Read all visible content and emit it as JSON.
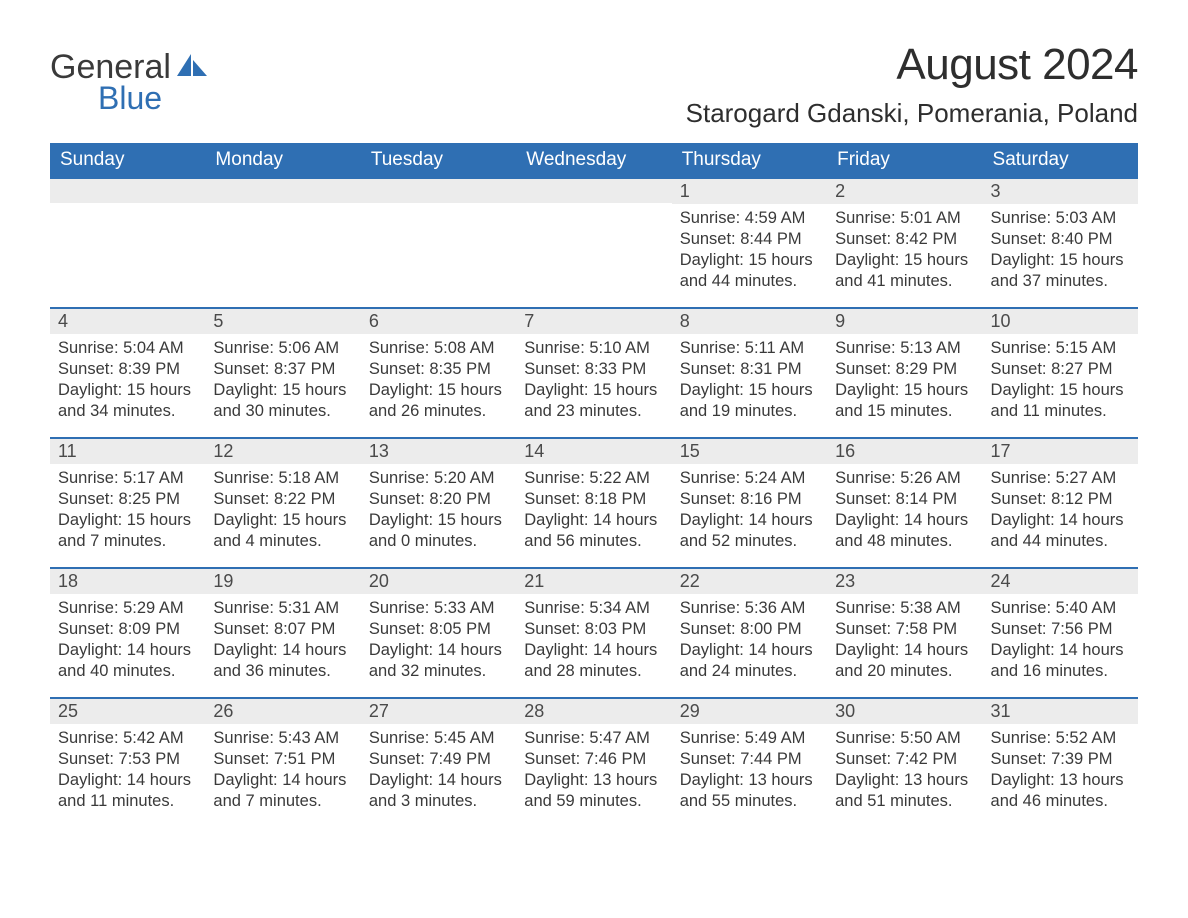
{
  "brand": {
    "word1": "General",
    "word2": "Blue"
  },
  "title": "August 2024",
  "location": "Starogard Gdanski, Pomerania, Poland",
  "colors": {
    "accent": "#2f6fb3",
    "header_bg": "#2f6fb3",
    "header_text": "#ffffff",
    "day_bar_bg": "#ececec",
    "text": "#3a3a3a",
    "page_bg": "#ffffff"
  },
  "typography": {
    "month_title_fontsize": 44,
    "location_fontsize": 26,
    "weekday_fontsize": 19,
    "daynum_fontsize": 18,
    "body_fontsize": 16.5
  },
  "layout": {
    "columns": 7,
    "rows": 5,
    "start_weekday_index": 4
  },
  "weekdays": [
    "Sunday",
    "Monday",
    "Tuesday",
    "Wednesday",
    "Thursday",
    "Friday",
    "Saturday"
  ],
  "labels": {
    "sunrise": "Sunrise:",
    "sunset": "Sunset:",
    "daylight": "Daylight:"
  },
  "days": [
    {
      "n": 1,
      "sunrise": "4:59 AM",
      "sunset": "8:44 PM",
      "daylight": "15 hours and 44 minutes."
    },
    {
      "n": 2,
      "sunrise": "5:01 AM",
      "sunset": "8:42 PM",
      "daylight": "15 hours and 41 minutes."
    },
    {
      "n": 3,
      "sunrise": "5:03 AM",
      "sunset": "8:40 PM",
      "daylight": "15 hours and 37 minutes."
    },
    {
      "n": 4,
      "sunrise": "5:04 AM",
      "sunset": "8:39 PM",
      "daylight": "15 hours and 34 minutes."
    },
    {
      "n": 5,
      "sunrise": "5:06 AM",
      "sunset": "8:37 PM",
      "daylight": "15 hours and 30 minutes."
    },
    {
      "n": 6,
      "sunrise": "5:08 AM",
      "sunset": "8:35 PM",
      "daylight": "15 hours and 26 minutes."
    },
    {
      "n": 7,
      "sunrise": "5:10 AM",
      "sunset": "8:33 PM",
      "daylight": "15 hours and 23 minutes."
    },
    {
      "n": 8,
      "sunrise": "5:11 AM",
      "sunset": "8:31 PM",
      "daylight": "15 hours and 19 minutes."
    },
    {
      "n": 9,
      "sunrise": "5:13 AM",
      "sunset": "8:29 PM",
      "daylight": "15 hours and 15 minutes."
    },
    {
      "n": 10,
      "sunrise": "5:15 AM",
      "sunset": "8:27 PM",
      "daylight": "15 hours and 11 minutes."
    },
    {
      "n": 11,
      "sunrise": "5:17 AM",
      "sunset": "8:25 PM",
      "daylight": "15 hours and 7 minutes."
    },
    {
      "n": 12,
      "sunrise": "5:18 AM",
      "sunset": "8:22 PM",
      "daylight": "15 hours and 4 minutes."
    },
    {
      "n": 13,
      "sunrise": "5:20 AM",
      "sunset": "8:20 PM",
      "daylight": "15 hours and 0 minutes."
    },
    {
      "n": 14,
      "sunrise": "5:22 AM",
      "sunset": "8:18 PM",
      "daylight": "14 hours and 56 minutes."
    },
    {
      "n": 15,
      "sunrise": "5:24 AM",
      "sunset": "8:16 PM",
      "daylight": "14 hours and 52 minutes."
    },
    {
      "n": 16,
      "sunrise": "5:26 AM",
      "sunset": "8:14 PM",
      "daylight": "14 hours and 48 minutes."
    },
    {
      "n": 17,
      "sunrise": "5:27 AM",
      "sunset": "8:12 PM",
      "daylight": "14 hours and 44 minutes."
    },
    {
      "n": 18,
      "sunrise": "5:29 AM",
      "sunset": "8:09 PM",
      "daylight": "14 hours and 40 minutes."
    },
    {
      "n": 19,
      "sunrise": "5:31 AM",
      "sunset": "8:07 PM",
      "daylight": "14 hours and 36 minutes."
    },
    {
      "n": 20,
      "sunrise": "5:33 AM",
      "sunset": "8:05 PM",
      "daylight": "14 hours and 32 minutes."
    },
    {
      "n": 21,
      "sunrise": "5:34 AM",
      "sunset": "8:03 PM",
      "daylight": "14 hours and 28 minutes."
    },
    {
      "n": 22,
      "sunrise": "5:36 AM",
      "sunset": "8:00 PM",
      "daylight": "14 hours and 24 minutes."
    },
    {
      "n": 23,
      "sunrise": "5:38 AM",
      "sunset": "7:58 PM",
      "daylight": "14 hours and 20 minutes."
    },
    {
      "n": 24,
      "sunrise": "5:40 AM",
      "sunset": "7:56 PM",
      "daylight": "14 hours and 16 minutes."
    },
    {
      "n": 25,
      "sunrise": "5:42 AM",
      "sunset": "7:53 PM",
      "daylight": "14 hours and 11 minutes."
    },
    {
      "n": 26,
      "sunrise": "5:43 AM",
      "sunset": "7:51 PM",
      "daylight": "14 hours and 7 minutes."
    },
    {
      "n": 27,
      "sunrise": "5:45 AM",
      "sunset": "7:49 PM",
      "daylight": "14 hours and 3 minutes."
    },
    {
      "n": 28,
      "sunrise": "5:47 AM",
      "sunset": "7:46 PM",
      "daylight": "13 hours and 59 minutes."
    },
    {
      "n": 29,
      "sunrise": "5:49 AM",
      "sunset": "7:44 PM",
      "daylight": "13 hours and 55 minutes."
    },
    {
      "n": 30,
      "sunrise": "5:50 AM",
      "sunset": "7:42 PM",
      "daylight": "13 hours and 51 minutes."
    },
    {
      "n": 31,
      "sunrise": "5:52 AM",
      "sunset": "7:39 PM",
      "daylight": "13 hours and 46 minutes."
    }
  ]
}
